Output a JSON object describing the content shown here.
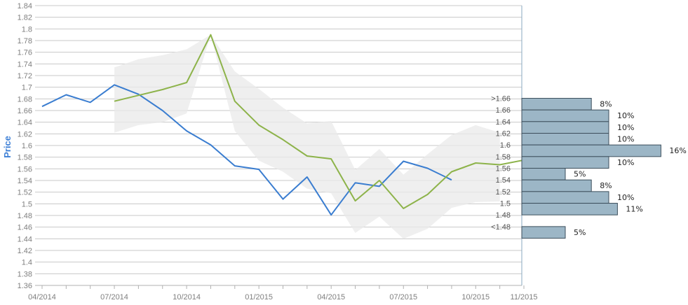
{
  "chart_data": {
    "type": "line",
    "title": "",
    "xlabel": "",
    "ylabel": "Price",
    "ylim": [
      1.36,
      1.84
    ],
    "y_ticks": [
      "1.36",
      "1.38",
      "1.4",
      "1.42",
      "1.44",
      "1.46",
      "1.48",
      "1.5",
      "1.52",
      "1.54",
      "1.56",
      "1.58",
      "1.6",
      "1.62",
      "1.64",
      "1.66",
      "1.68",
      "1.7",
      "1.72",
      "1.74",
      "1.76",
      "1.78",
      "1.8",
      "1.82",
      "1.84"
    ],
    "x_tick_labels": [
      "04/2014",
      "07/2014",
      "10/2014",
      "01/2015",
      "04/2015",
      "07/2015",
      "10/2015",
      "11/2015"
    ],
    "grid": true,
    "series": [
      {
        "color": "#3a7dd0",
        "x": [
          "2014-04",
          "2014-05",
          "2014-06",
          "2014-07",
          "2014-08",
          "2014-09",
          "2014-10",
          "2014-11",
          "2014-12",
          "2015-01",
          "2015-02",
          "2015-03",
          "2015-04",
          "2015-05",
          "2015-06",
          "2015-07",
          "2015-08",
          "2015-09"
        ],
        "values": [
          1.667,
          1.687,
          1.674,
          1.704,
          1.688,
          1.66,
          1.625,
          1.601,
          1.565,
          1.559,
          1.508,
          1.546,
          1.481,
          1.536,
          1.53,
          1.573,
          1.561,
          1.541
        ]
      },
      {
        "color": "#8db34a",
        "x": [
          "2014-07",
          "2014-08",
          "2014-09",
          "2014-10",
          "2014-11",
          "2014-12",
          "2015-01",
          "2015-02",
          "2015-03",
          "2015-04",
          "2015-05",
          "2015-06",
          "2015-07",
          "2015-08",
          "2015-09",
          "2015-10",
          "2015-11",
          "2015-12"
        ],
        "values": [
          1.676,
          1.686,
          1.696,
          1.708,
          1.79,
          1.676,
          1.635,
          1.61,
          1.582,
          1.577,
          1.505,
          1.54,
          1.492,
          1.516,
          1.555,
          1.57,
          1.567,
          1.575
        ]
      }
    ],
    "band": {
      "color": "#e9e9e9",
      "x": [
        "2014-07",
        "2014-08",
        "2014-09",
        "2014-10",
        "2014-11",
        "2014-12",
        "2015-01",
        "2015-02",
        "2015-03",
        "2015-04",
        "2015-05",
        "2015-06",
        "2015-07",
        "2015-08",
        "2015-09",
        "2015-10",
        "2015-11"
      ],
      "upper": [
        1.734,
        1.748,
        1.755,
        1.765,
        1.79,
        1.727,
        1.697,
        1.665,
        1.638,
        1.642,
        1.558,
        1.594,
        1.55,
        1.585,
        1.618,
        1.635,
        1.622
      ],
      "lower": [
        1.622,
        1.635,
        1.64,
        1.655,
        1.79,
        1.625,
        1.574,
        1.555,
        1.526,
        1.518,
        1.45,
        1.478,
        1.44,
        1.457,
        1.493,
        1.503,
        1.504
      ]
    },
    "distribution": {
      "color": "#9cb6c6",
      "bins": [
        {
          "label": ">1.66",
          "pct": "8%",
          "value": 8
        },
        {
          "label": "1.66",
          "pct": "10%",
          "value": 10
        },
        {
          "label": "1.64",
          "pct": "10%",
          "value": 10
        },
        {
          "label": "1.62",
          "pct": "10%",
          "value": 10
        },
        {
          "label": "1.6",
          "pct": "16%",
          "value": 16
        },
        {
          "label": "1.58",
          "pct": "10%",
          "value": 10
        },
        {
          "label": "1.56",
          "pct": "5%",
          "value": 5
        },
        {
          "label": "1.54",
          "pct": "8%",
          "value": 8
        },
        {
          "label": "1.52",
          "pct": "10%",
          "value": 10
        },
        {
          "label": "1.5",
          "pct": "11%",
          "value": 11
        },
        {
          "label": "1.48",
          "pct": "",
          "value": 0
        },
        {
          "label": "<1.48",
          "pct": "5%",
          "value": 5
        }
      ]
    }
  }
}
